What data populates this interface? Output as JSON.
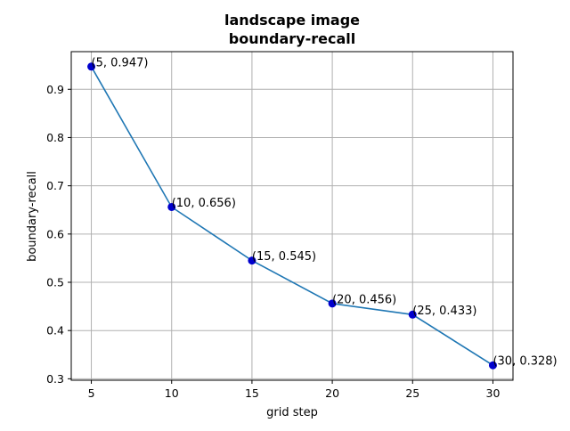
{
  "chart_data": {
    "type": "line",
    "title": "landscape image",
    "subtitle": "boundary-recall",
    "xlabel": "grid step",
    "ylabel": "boundary-recall",
    "x": [
      5,
      10,
      15,
      20,
      25,
      30
    ],
    "series": [
      {
        "values": [
          0.947,
          0.656,
          0.545,
          0.456,
          0.433,
          0.328
        ],
        "line_color": "#1f77b4",
        "marker_color": "#0000cd"
      }
    ],
    "data_labels": [
      "(5, 0.947)",
      "(10, 0.656)",
      "(15, 0.545)",
      "(20, 0.456)",
      "(25, 0.433)",
      "(30, 0.328)"
    ],
    "xticks": [
      5,
      10,
      15,
      20,
      25,
      30
    ],
    "yticks": [
      0.3,
      0.4,
      0.5,
      0.6,
      0.7,
      0.8,
      0.9
    ],
    "xlim": [
      3.75,
      31.25
    ],
    "ylim": [
      0.297,
      0.978
    ],
    "grid": true,
    "grid_color": "#b0b0b0",
    "legend": "none"
  }
}
